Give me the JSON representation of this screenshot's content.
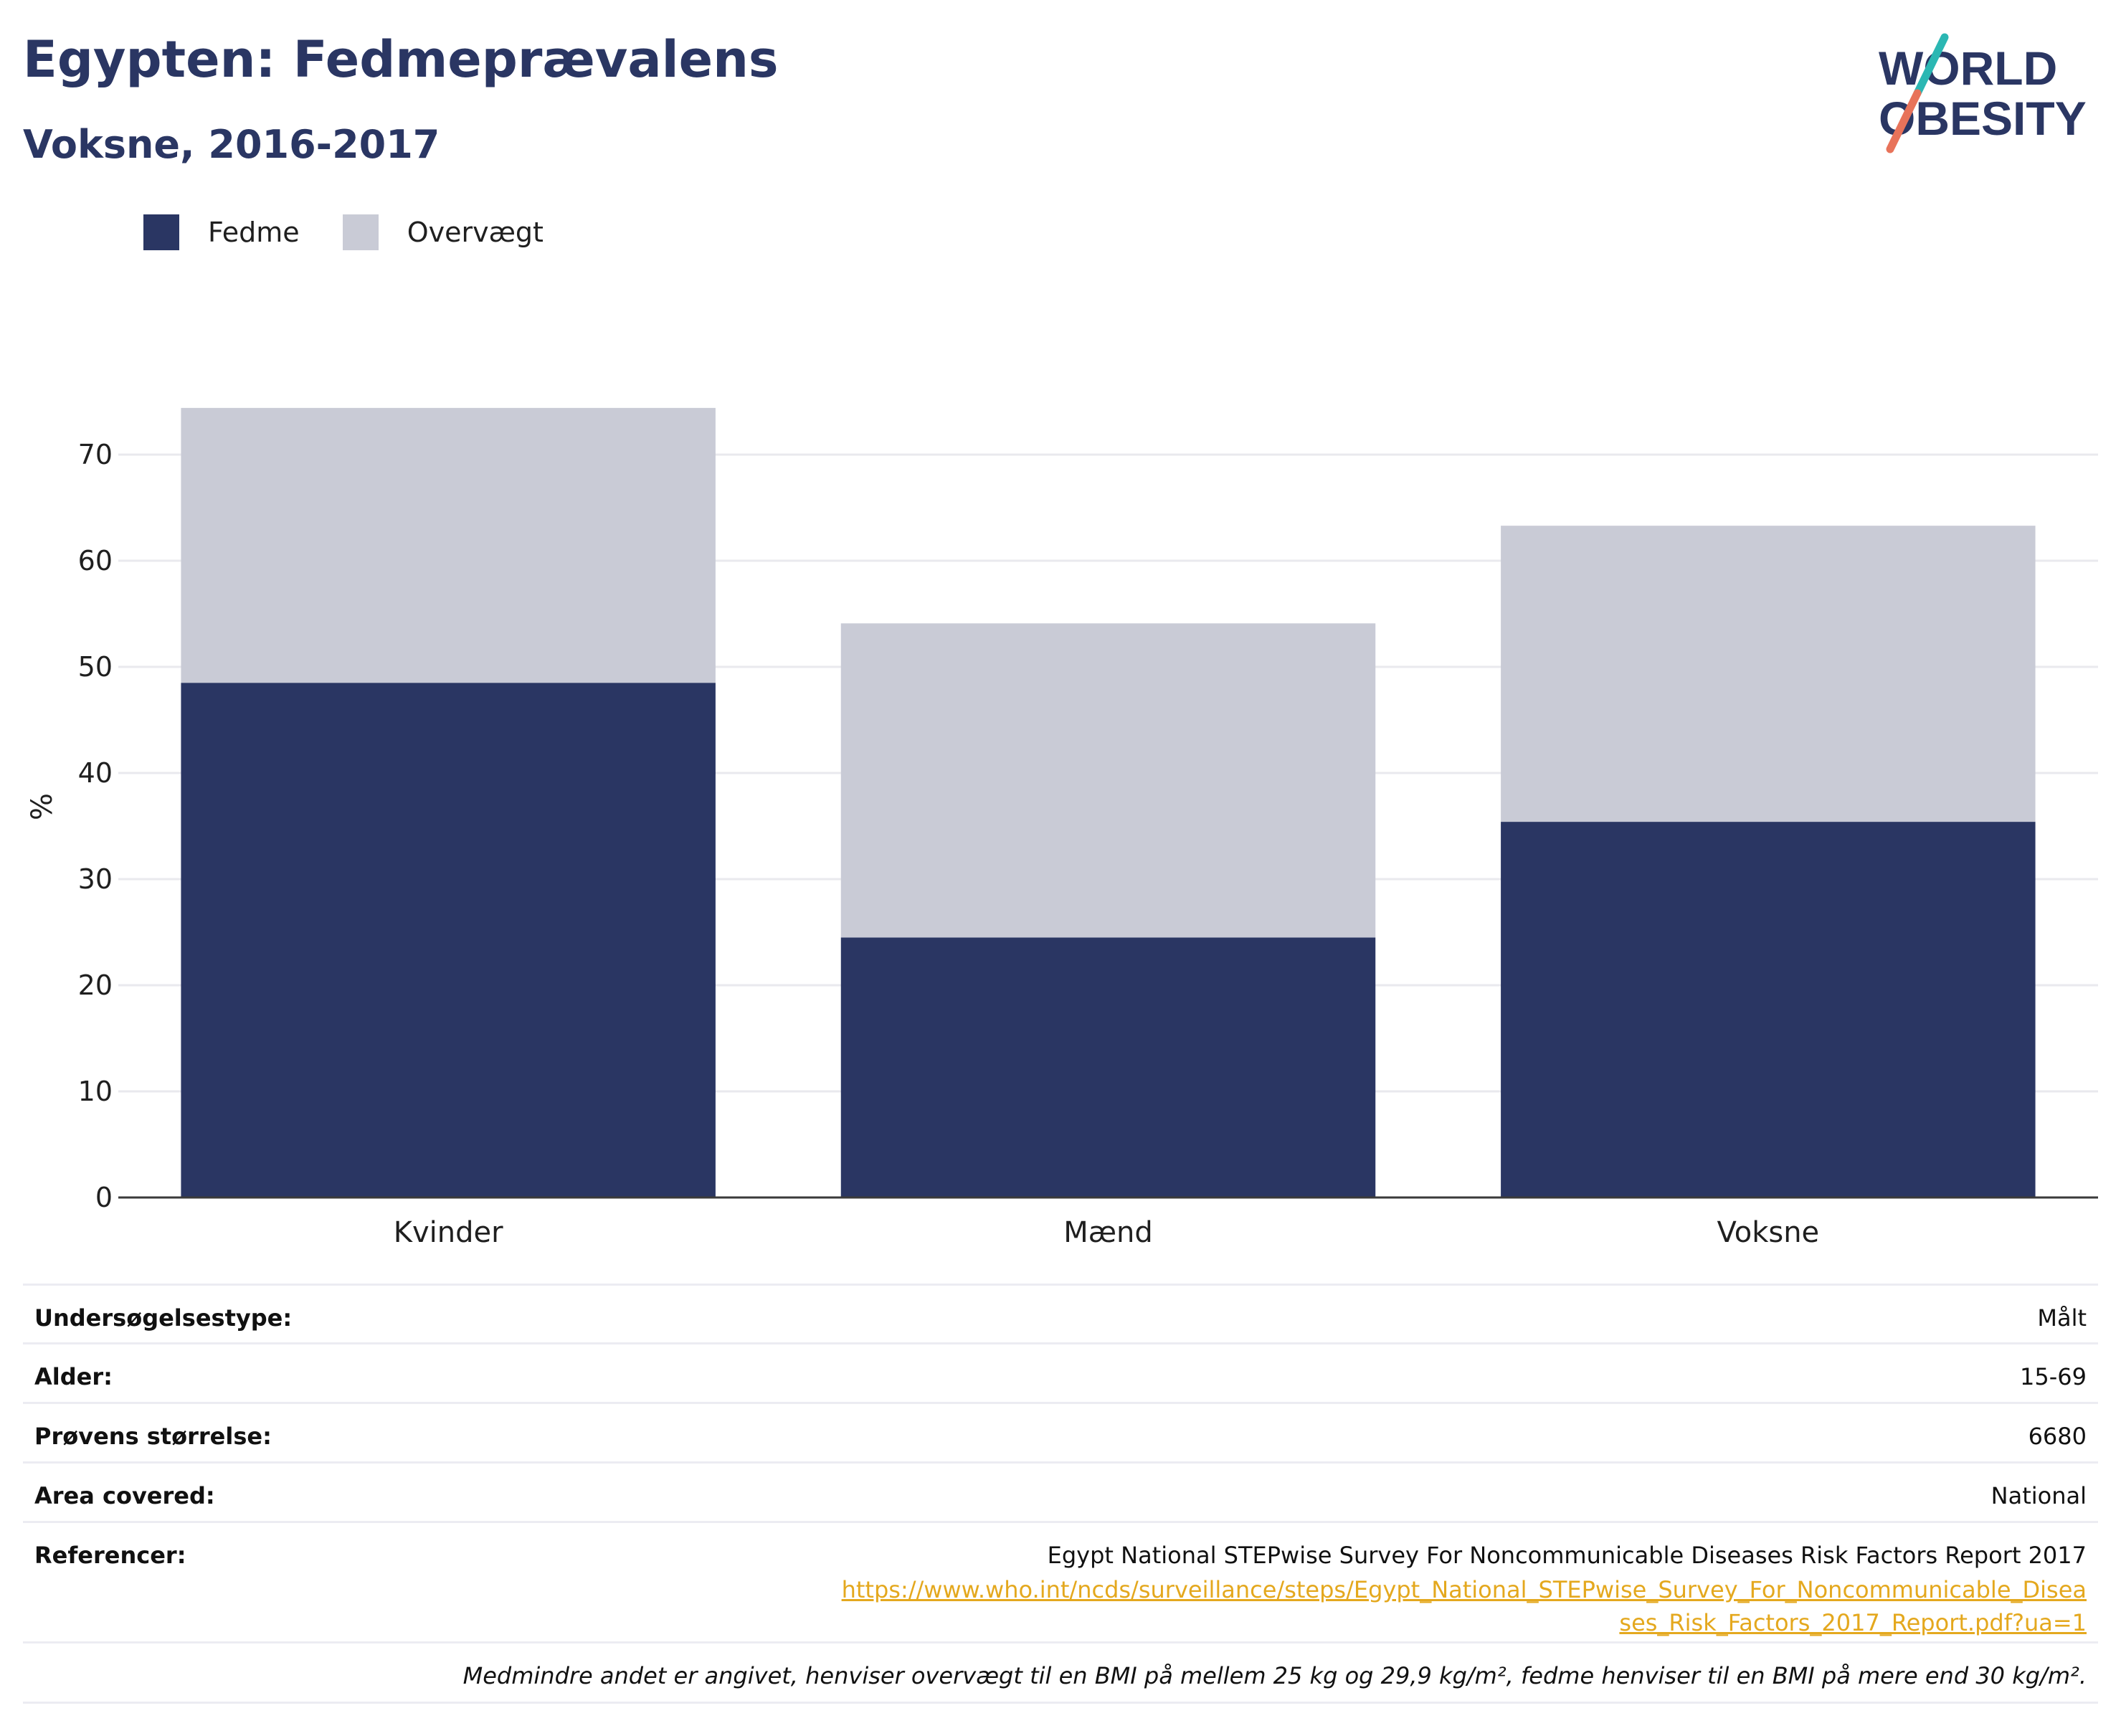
{
  "header": {
    "title": "Egypten: Fedmeprævalens",
    "subtitle": "Voksne, 2016-2017"
  },
  "logo": {
    "line1": "WORLD",
    "line2": "OBESITY"
  },
  "colors": {
    "fedme": "#2a3663",
    "overvaegt": "#c9cbd6",
    "accent_teal": "#2bb7b3",
    "accent_coral": "#e8735a",
    "link": "#e4a81e"
  },
  "legend": [
    {
      "label": "Fedme",
      "color": "#2a3663"
    },
    {
      "label": "Overvægt",
      "color": "#c9cbd6"
    }
  ],
  "chart_data": {
    "type": "bar",
    "stacked": true,
    "categories": [
      "Kvinder",
      "Mænd",
      "Voksne"
    ],
    "series": [
      {
        "name": "Fedme",
        "values": [
          48.5,
          24.5,
          35.4
        ]
      },
      {
        "name": "Overvægt",
        "values": [
          25.9,
          29.6,
          27.9
        ]
      }
    ],
    "ylabel": "%",
    "ylim": [
      0,
      75
    ],
    "yticks": [
      0,
      10,
      20,
      30,
      40,
      50,
      60,
      70
    ],
    "grid": true,
    "legend_position": "top-left"
  },
  "info": {
    "rows": [
      {
        "key": "Undersøgelsestype:",
        "value": "Målt"
      },
      {
        "key": "Alder:",
        "value": "15-69"
      },
      {
        "key": "Prøvens størrelse:",
        "value": "6680"
      },
      {
        "key": "Area covered:",
        "value": "National"
      }
    ],
    "references": {
      "key": "Referencer:",
      "text": "Egypt National STEPwise Survey For Noncommunicable Diseases Risk Factors Report 2017",
      "link": "https://www.who.int/ncds/surveillance/steps/Egypt_National_STEPwise_Survey_For_Noncommunicable_Diseases_Risk_Factors_2017_Report.pdf?ua=1"
    },
    "note": "Medmindre andet er angivet, henviser overvægt til en BMI på mellem 25 kg og 29,9 kg/m², fedme henviser til en BMI på mere end 30 kg/m²."
  }
}
